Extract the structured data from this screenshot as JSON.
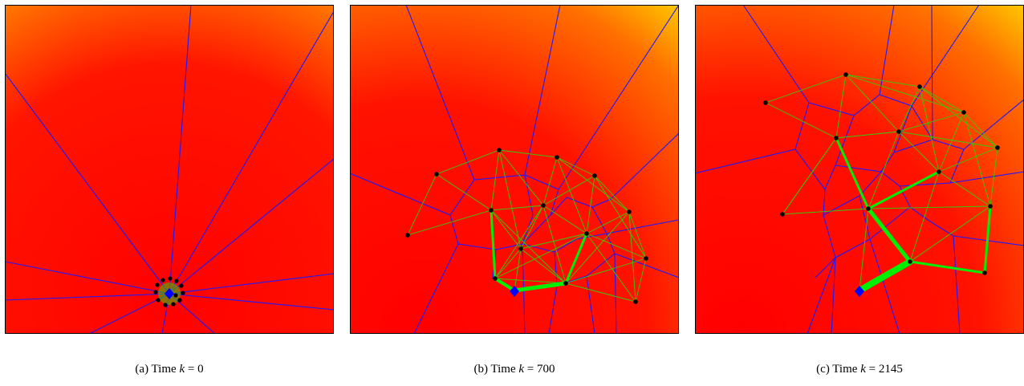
{
  "colors": {
    "field_low": "#ff0000",
    "field_high": "#ffff00",
    "voronoi_edges": "#1a1aff",
    "communication_links": "#33cc00",
    "path": "#00ee00",
    "agents": "#000000",
    "base_station": "#0000ff",
    "frame": "#000000"
  },
  "icons": {
    "agent": "black-dot",
    "base_station": "blue-diamond"
  },
  "panels": [
    {
      "caption_prefix": "(a) Time ",
      "caption_var": "k",
      "caption_eq": " = ",
      "caption_value": "0"
    },
    {
      "caption_prefix": "(b) Time ",
      "caption_var": "k",
      "caption_eq": " = ",
      "caption_value": "700"
    },
    {
      "caption_prefix": "(c) Time ",
      "caption_var": "k",
      "caption_eq": " = ",
      "caption_value": "2145"
    }
  ]
}
